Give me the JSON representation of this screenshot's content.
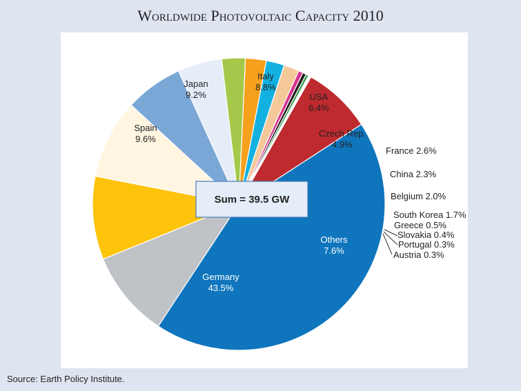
{
  "title": "Worldwide Photovoltaic Capacity 2010",
  "source": "Source: Earth Policy Institute.",
  "chart_data": {
    "type": "pie",
    "title": "Worldwide Photovoltaic Capacity 2010",
    "center_label": "Sum = 39.5 GW",
    "unit": "%",
    "slices": [
      {
        "label": "Italy",
        "value": 8.8,
        "value_label": "8.8%",
        "color": "#fff5e1"
      },
      {
        "label": "USA",
        "value": 6.4,
        "value_label": "6.4%",
        "color": "#7ba7d6"
      },
      {
        "label": "Czech Rep.",
        "value": 4.9,
        "value_label": "4.9%",
        "color": "#e5edf8"
      },
      {
        "label": "France",
        "value": 2.6,
        "value_label": "2.6%",
        "color": "#a5c84a"
      },
      {
        "label": "China",
        "value": 2.3,
        "value_label": "2.3%",
        "color": "#f5a11d"
      },
      {
        "label": "Belgium",
        "value": 2.0,
        "value_label": "2.0%",
        "color": "#13b1e0"
      },
      {
        "label": "South Korea",
        "value": 1.7,
        "value_label": "1.7%",
        "color": "#f5c89a"
      },
      {
        "label": "Greece",
        "value": 0.5,
        "value_label": "0.5%",
        "color": "#d8338f"
      },
      {
        "label": "Slovakia",
        "value": 0.4,
        "value_label": "0.4%",
        "color": "#231f20"
      },
      {
        "label": "Portugal",
        "value": 0.3,
        "value_label": "0.3%",
        "color": "#3a9a4a"
      },
      {
        "label": "Austria",
        "value": 0.3,
        "value_label": "0.3%",
        "color": "#ffffff"
      },
      {
        "label": "Others",
        "value": 7.6,
        "value_label": "7.6%",
        "color": "#be2a2e"
      },
      {
        "label": "Germany",
        "value": 43.5,
        "value_label": "43.5%",
        "color": "#0f75bc"
      },
      {
        "label": "Spain",
        "value": 9.6,
        "value_label": "9.6%",
        "color": "#bfc2c7"
      },
      {
        "label": "Japan",
        "value": 9.2,
        "value_label": "9.2%",
        "color": "#fec30b"
      }
    ]
  }
}
